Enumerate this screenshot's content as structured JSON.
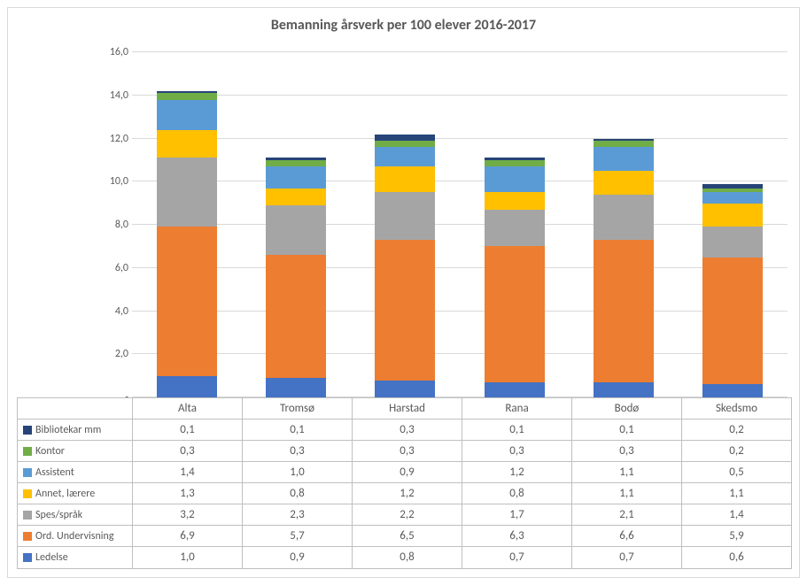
{
  "chart": {
    "type": "stacked-bar",
    "title": "Bemanning årsverk per 100 elever 2016-2017",
    "title_fontsize": 16,
    "title_color": "#595959",
    "background_color": "#ffffff",
    "grid_color": "#d9d9d9",
    "border_color": "#bfbfbf",
    "text_color": "#595959",
    "label_fontsize": 13,
    "ylim": [
      0,
      16
    ],
    "ytick_step": 2,
    "yticks": [
      "-",
      "2,0",
      "4,0",
      "6,0",
      "8,0",
      "10,0",
      "12,0",
      "14,0",
      "16,0"
    ],
    "bar_width_ratio": 0.55,
    "categories": [
      "Alta",
      "Tromsø",
      "Harstad",
      "Rana",
      "Bodø",
      "Skedsmo"
    ],
    "series": [
      {
        "name": "Ledelse",
        "color": "#4472c4",
        "values": [
          1.0,
          0.9,
          0.8,
          0.7,
          0.7,
          0.6
        ],
        "display": [
          "1,0",
          "0,9",
          "0,8",
          "0,7",
          "0,7",
          "0,6"
        ]
      },
      {
        "name": "Ord. Undervisning",
        "color": "#ed7d31",
        "values": [
          6.9,
          5.7,
          6.5,
          6.3,
          6.6,
          5.9
        ],
        "display": [
          "6,9",
          "5,7",
          "6,5",
          "6,3",
          "6,6",
          "5,9"
        ]
      },
      {
        "name": "Spes/språk",
        "color": "#a5a5a5",
        "values": [
          3.2,
          2.3,
          2.2,
          1.7,
          2.1,
          1.4
        ],
        "display": [
          "3,2",
          "2,3",
          "2,2",
          "1,7",
          "2,1",
          "1,4"
        ]
      },
      {
        "name": "Annet, lærere",
        "color": "#ffc000",
        "values": [
          1.3,
          0.8,
          1.2,
          0.8,
          1.1,
          1.1
        ],
        "display": [
          "1,3",
          "0,8",
          "1,2",
          "0,8",
          "1,1",
          "1,1"
        ]
      },
      {
        "name": "Assistent",
        "color": "#5b9bd5",
        "values": [
          1.4,
          1.0,
          0.9,
          1.2,
          1.1,
          0.5
        ],
        "display": [
          "1,4",
          "1,0",
          "0,9",
          "1,2",
          "1,1",
          "0,5"
        ]
      },
      {
        "name": "Kontor",
        "color": "#70ad47",
        "values": [
          0.3,
          0.3,
          0.3,
          0.3,
          0.3,
          0.2
        ],
        "display": [
          "0,3",
          "0,3",
          "0,3",
          "0,3",
          "0,3",
          "0,2"
        ]
      },
      {
        "name": "Bibliotekar mm",
        "color": "#264478",
        "values": [
          0.1,
          0.1,
          0.3,
          0.1,
          0.1,
          0.2
        ],
        "display": [
          "0,1",
          "0,1",
          "0,3",
          "0,1",
          "0,1",
          "0,2"
        ]
      }
    ],
    "legend_order": [
      6,
      5,
      4,
      3,
      2,
      1,
      0
    ]
  }
}
